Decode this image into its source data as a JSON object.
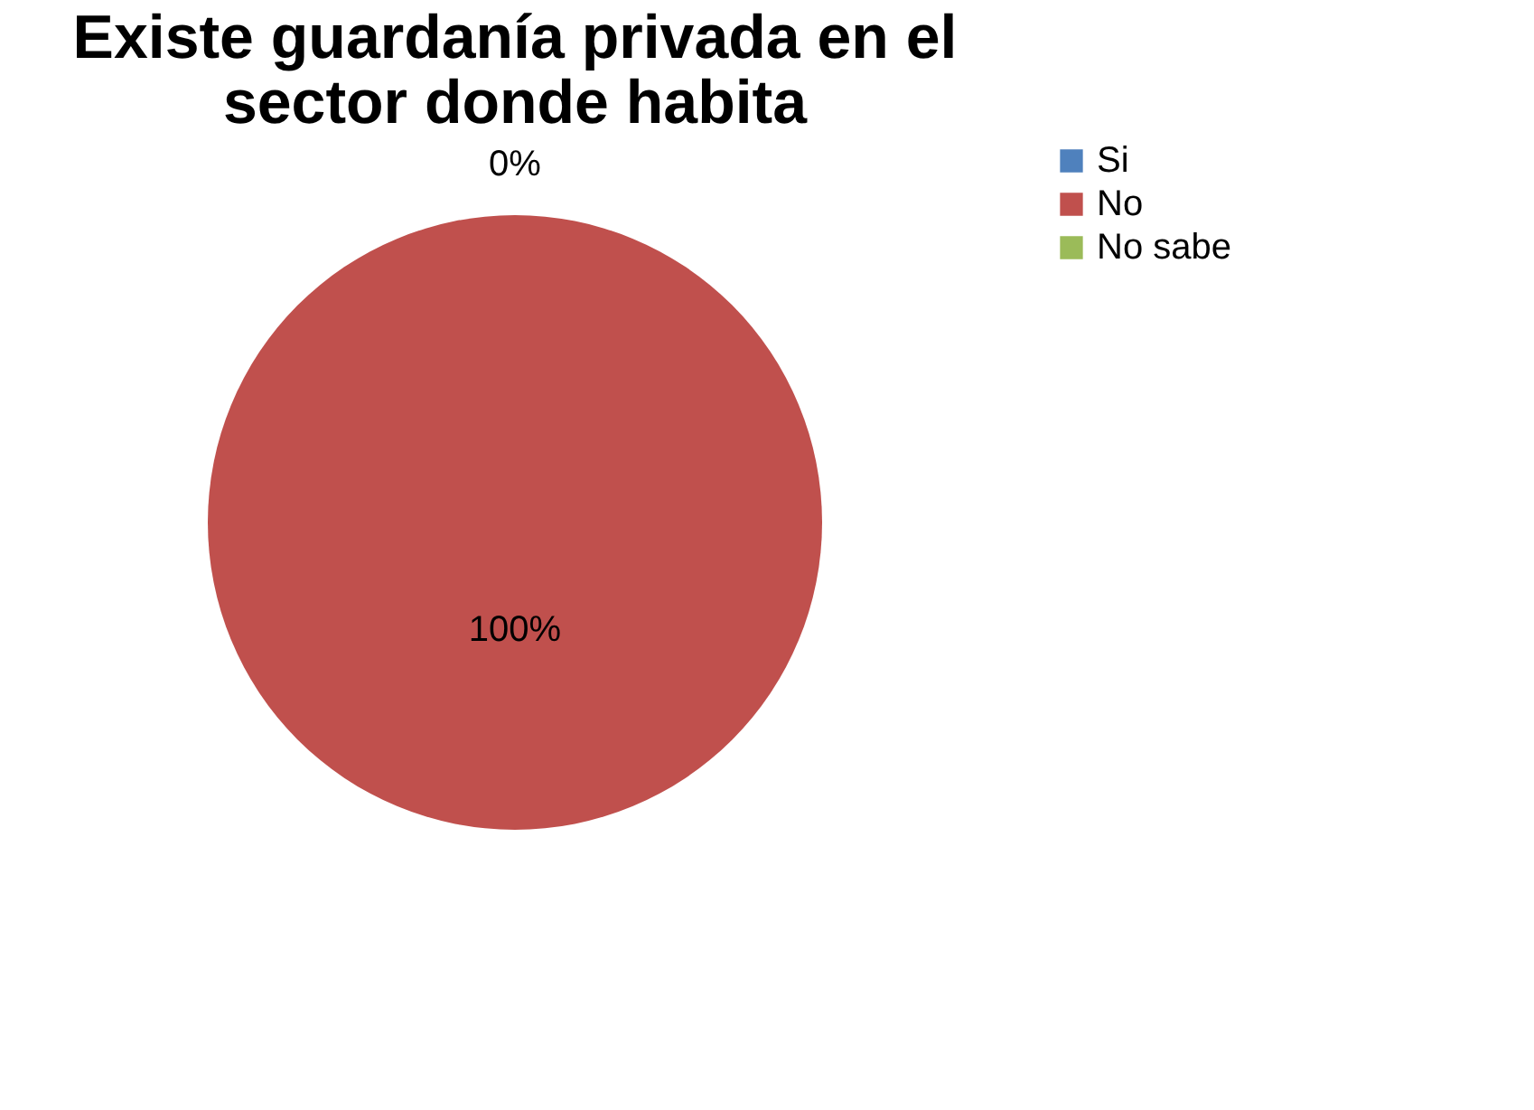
{
  "chart_data": {
    "type": "pie",
    "title": "Existe guardanía privada en el sector donde habita",
    "categories": [
      "Si",
      "No",
      "No sabe"
    ],
    "values": [
      0,
      100,
      0
    ],
    "colors": [
      "#4f81bd",
      "#c0504d",
      "#9bbb59"
    ],
    "value_labels": [
      "0%",
      "100%",
      null
    ],
    "legend": "right"
  }
}
